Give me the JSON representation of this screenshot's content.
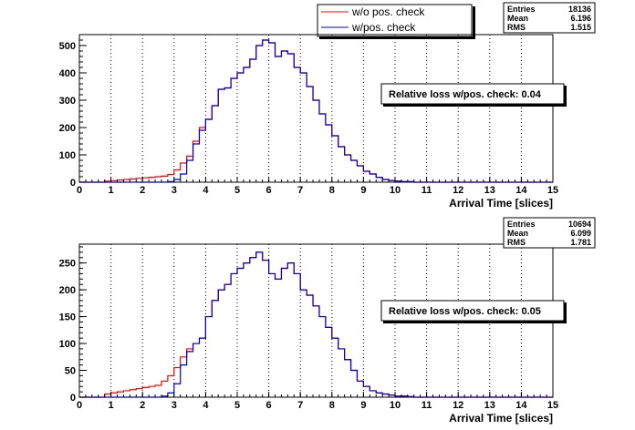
{
  "legend": {
    "items": [
      {
        "label": "w/o pos. check",
        "color": "#ff0000"
      },
      {
        "label": "w/pos. check",
        "color": "#0000cc"
      }
    ]
  },
  "chart_data": [
    {
      "type": "histogram",
      "xlabel": "Arrival Time [slices]",
      "xlim": [
        0,
        15
      ],
      "ylim": [
        0,
        540
      ],
      "x_ticks": [
        0,
        1,
        2,
        3,
        4,
        5,
        6,
        7,
        8,
        9,
        10,
        11,
        12,
        13,
        14,
        15
      ],
      "y_ticks": [
        0,
        100,
        200,
        300,
        400,
        500
      ],
      "grid": "vertical dotted at integer x",
      "bin_width": 0.2,
      "stats": {
        "entries_label": "Entries",
        "entries": "18136",
        "mean_label": "Mean",
        "mean": "6.196",
        "rms_label": "RMS",
        "rms": "1.515"
      },
      "annotation": "Relative loss w/pos. check: 0.04",
      "series": [
        {
          "name": "w/o pos. check",
          "color": "#ff0000",
          "x_start": 0.8,
          "values": [
            4,
            6,
            8,
            10,
            12,
            14,
            16,
            18,
            20,
            22,
            28,
            45,
            70,
            95,
            150,
            200,
            230,
            280,
            340,
            345,
            380,
            400,
            420,
            450,
            500,
            520,
            510,
            460,
            480,
            470,
            420,
            400,
            350,
            300,
            250,
            210,
            170,
            130,
            100,
            80,
            60,
            40,
            30,
            18,
            10,
            6,
            4,
            2,
            2
          ]
        },
        {
          "name": "w/pos. check",
          "color": "#0000cc",
          "x_start": 0.8,
          "values": [
            0,
            0,
            0,
            0,
            0,
            0,
            0,
            0,
            0,
            0,
            2,
            10,
            30,
            80,
            140,
            190,
            230,
            280,
            340,
            345,
            380,
            400,
            420,
            450,
            500,
            520,
            510,
            460,
            480,
            470,
            420,
            400,
            350,
            300,
            250,
            210,
            170,
            130,
            100,
            80,
            60,
            40,
            30,
            18,
            10,
            6,
            4,
            2,
            2
          ]
        }
      ]
    },
    {
      "type": "histogram",
      "xlabel": "Arrival Time [slices]",
      "xlim": [
        0,
        15
      ],
      "ylim": [
        0,
        285
      ],
      "x_ticks": [
        0,
        1,
        2,
        3,
        4,
        5,
        6,
        7,
        8,
        9,
        10,
        11,
        12,
        13,
        14,
        15
      ],
      "y_ticks": [
        0,
        50,
        100,
        150,
        200,
        250
      ],
      "grid": "vertical dotted at integer x",
      "bin_width": 0.2,
      "stats": {
        "entries_label": "Entries",
        "entries": "10694",
        "mean_label": "Mean",
        "mean": "6.099",
        "rms_label": "RMS",
        "rms": "1.781"
      },
      "annotation": "Relative loss w/pos. check: 0.05",
      "series": [
        {
          "name": "w/o pos. check",
          "color": "#ff0000",
          "x_start": 0.8,
          "values": [
            6,
            8,
            10,
            12,
            14,
            16,
            18,
            20,
            22,
            30,
            40,
            55,
            75,
            90,
            100,
            110,
            150,
            180,
            200,
            210,
            230,
            240,
            250,
            260,
            270,
            255,
            230,
            220,
            240,
            250,
            230,
            200,
            190,
            170,
            150,
            130,
            110,
            90,
            70,
            50,
            30,
            20,
            12,
            8,
            6,
            4,
            2,
            2,
            1
          ]
        },
        {
          "name": "w/pos. check",
          "color": "#0000cc",
          "x_start": 0.8,
          "values": [
            0,
            0,
            0,
            0,
            0,
            0,
            0,
            0,
            0,
            2,
            8,
            25,
            60,
            85,
            100,
            110,
            150,
            180,
            200,
            210,
            230,
            240,
            250,
            260,
            270,
            255,
            230,
            220,
            240,
            250,
            230,
            200,
            190,
            170,
            150,
            130,
            110,
            90,
            70,
            50,
            30,
            20,
            12,
            8,
            6,
            4,
            2,
            2,
            1
          ]
        }
      ]
    }
  ]
}
